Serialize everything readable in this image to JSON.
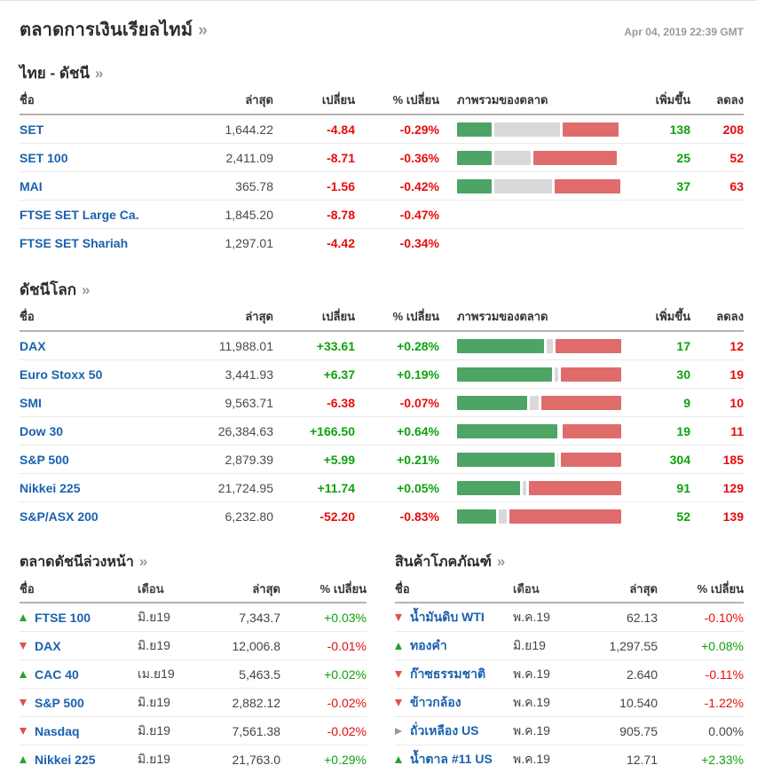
{
  "page": {
    "title": "ตลาดการเงินเรียลไทม์",
    "more_symbol": "»",
    "timestamp": "Apr 04, 2019 22:39 GMT"
  },
  "colors": {
    "positive": "#0ca30c",
    "negative": "#e80b0b",
    "link_blue": "#1a61ae",
    "bar_green": "#4da465",
    "bar_gray": "#d9d9d9",
    "bar_red": "#e06b6b",
    "arrow_up": "#27a22e",
    "arrow_down": "#e05050",
    "arrow_neutral": "#999999"
  },
  "thai_indices": {
    "title": "ไทย - ดัชนี",
    "more_symbol": "»",
    "columns": {
      "name": "ชื่อ",
      "last": "ล่าสุด",
      "change": "เปลี่ยน",
      "pct_change": "% เปลี่ยน",
      "overview": "ภาพรวมของตลาด",
      "advancers": "เพิ่มขึ้น",
      "decliners": "ลดลง"
    },
    "rows": [
      {
        "name": "SET",
        "last": "1,644.22",
        "change": "-4.84",
        "pct": "-0.29%",
        "bar": [
          21,
          40,
          34
        ],
        "adv": "138",
        "dec": "208"
      },
      {
        "name": "SET 100",
        "last": "2,411.09",
        "change": "-8.71",
        "pct": "-0.36%",
        "bar": [
          21,
          22,
          51
        ],
        "adv": "25",
        "dec": "52"
      },
      {
        "name": "MAI",
        "last": "365.78",
        "change": "-1.56",
        "pct": "-0.42%",
        "bar": [
          21,
          35,
          40
        ],
        "adv": "37",
        "dec": "63"
      },
      {
        "name": "FTSE SET Large Ca.",
        "last": "1,845.20",
        "change": "-8.78",
        "pct": "-0.47%",
        "bar": null,
        "adv": "",
        "dec": ""
      },
      {
        "name": "FTSE SET Shariah",
        "last": "1,297.01",
        "change": "-4.42",
        "pct": "-0.34%",
        "bar": null,
        "adv": "",
        "dec": ""
      }
    ]
  },
  "world_indices": {
    "title": "ดัชนีโลก",
    "more_symbol": "»",
    "columns": {
      "name": "ชื่อ",
      "last": "ล่าสุด",
      "change": "เปลี่ยน",
      "pct_change": "% เปลี่ยน",
      "overview": "ภาพรวมของตลาด",
      "advancers": "เพิ่มขึ้น",
      "decliners": "ลดลง"
    },
    "rows": [
      {
        "name": "DAX",
        "last": "11,988.01",
        "change": "+33.61",
        "pct": "+0.28%",
        "bar": [
          53,
          4,
          40
        ],
        "adv": "17",
        "dec": "12"
      },
      {
        "name": "Euro Stoxx 50",
        "last": "3,441.93",
        "change": "+6.37",
        "pct": "+0.19%",
        "bar": [
          58,
          2,
          37
        ],
        "adv": "30",
        "dec": "19"
      },
      {
        "name": "SMI",
        "last": "9,563.71",
        "change": "-6.38",
        "pct": "-0.07%",
        "bar": [
          43,
          5,
          49
        ],
        "adv": "9",
        "dec": "10"
      },
      {
        "name": "Dow 30",
        "last": "26,384.63",
        "change": "+166.50",
        "pct": "+0.64%",
        "bar": [
          62,
          0,
          36
        ],
        "adv": "19",
        "dec": "11"
      },
      {
        "name": "S&P 500",
        "last": "2,879.39",
        "change": "+5.99",
        "pct": "+0.21%",
        "bar": [
          60,
          1,
          37
        ],
        "adv": "304",
        "dec": "185"
      },
      {
        "name": "Nikkei 225",
        "last": "21,724.95",
        "change": "+11.74",
        "pct": "+0.05%",
        "bar": [
          39,
          2,
          57
        ],
        "adv": "91",
        "dec": "129"
      },
      {
        "name": "S&P/ASX 200",
        "last": "6,232.80",
        "change": "-52.20",
        "pct": "-0.83%",
        "bar": [
          24,
          5,
          69
        ],
        "adv": "52",
        "dec": "139"
      }
    ]
  },
  "futures": {
    "title": "ตลาดดัชนีล่วงหน้า",
    "more_symbol": "»",
    "columns": {
      "name": "ชื่อ",
      "month": "เดือน",
      "last": "ล่าสุด",
      "pct_change": "% เปลี่ยน"
    },
    "rows": [
      {
        "direction": "up",
        "name": "FTSE 100",
        "month": "มิ.ย19",
        "last": "7,343.7",
        "pct": "+0.03%"
      },
      {
        "direction": "down",
        "name": "DAX",
        "month": "มิ.ย19",
        "last": "12,006.8",
        "pct": "-0.01%"
      },
      {
        "direction": "up",
        "name": "CAC 40",
        "month": "เม.ย19",
        "last": "5,463.5",
        "pct": "+0.02%"
      },
      {
        "direction": "down",
        "name": "S&P 500",
        "month": "มิ.ย19",
        "last": "2,882.12",
        "pct": "-0.02%"
      },
      {
        "direction": "down",
        "name": "Nasdaq",
        "month": "มิ.ย19",
        "last": "7,561.38",
        "pct": "-0.02%"
      },
      {
        "direction": "up",
        "name": "Nikkei 225",
        "month": "มิ.ย19",
        "last": "21,763.0",
        "pct": "+0.29%"
      }
    ]
  },
  "commodities": {
    "title": "สินค้าโภคภัณฑ์",
    "more_symbol": "»",
    "columns": {
      "name": "ชื่อ",
      "month": "เดือน",
      "last": "ล่าสุด",
      "pct_change": "% เปลี่ยน"
    },
    "rows": [
      {
        "direction": "down",
        "name": "น้ำมันดิบ WTI",
        "month": "พ.ค.19",
        "last": "62.13",
        "pct": "-0.10%"
      },
      {
        "direction": "up",
        "name": "ทองคำ",
        "month": "มิ.ย19",
        "last": "1,297.55",
        "pct": "+0.08%"
      },
      {
        "direction": "down",
        "name": "ก๊าซธรรมชาติ",
        "month": "พ.ค.19",
        "last": "2.640",
        "pct": "-0.11%"
      },
      {
        "direction": "down",
        "name": "ข้าวกล้อง",
        "month": "พ.ค.19",
        "last": "10.540",
        "pct": "-1.22%"
      },
      {
        "direction": "neutral",
        "name": "ถั่วเหลือง US",
        "month": "พ.ค.19",
        "last": "905.75",
        "pct": "0.00%"
      },
      {
        "direction": "up",
        "name": "น้ำตาล #11 US",
        "month": "พ.ค.19",
        "last": "12.71",
        "pct": "+2.33%"
      }
    ]
  }
}
